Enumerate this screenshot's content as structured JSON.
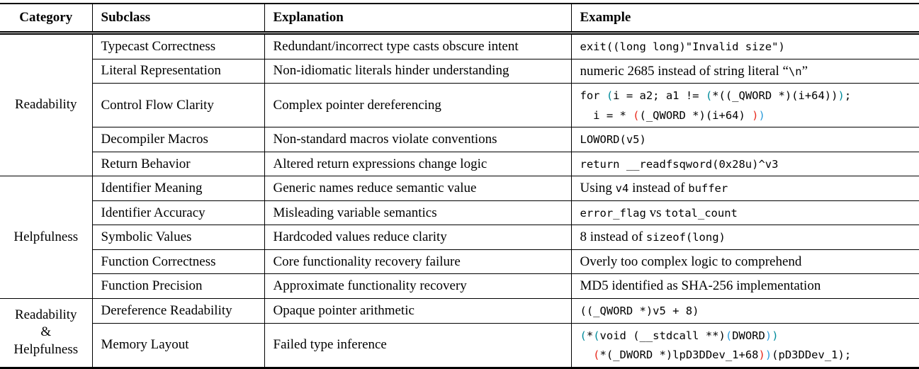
{
  "colors": {
    "teal": "#008B9B",
    "red": "#E8291C",
    "blue": "#2D9CDB"
  },
  "table": {
    "headers": [
      "Category",
      "Subclass",
      "Explanation",
      "Example"
    ],
    "groups": [
      {
        "category": [
          "Readability"
        ],
        "rows": [
          {
            "subclass": "Typecast Correctness",
            "explanation": "Redundant/incorrect type casts obscure intent",
            "example": [
              [
                {
                  "t": "exit((long long)\"Invalid size\")",
                  "m": true
                }
              ]
            ]
          },
          {
            "subclass": "Literal Representation",
            "explanation": "Non-idiomatic literals hinder understanding",
            "example": [
              [
                {
                  "t": "numeric 2685 instead of string literal “"
                },
                {
                  "t": "\\n",
                  "m": true
                },
                {
                  "t": "”"
                }
              ]
            ]
          },
          {
            "subclass": "Control Flow Clarity",
            "explanation": "Complex pointer dereferencing",
            "example": [
              [
                {
                  "t": "for ",
                  "m": true
                },
                {
                  "t": "(",
                  "m": true,
                  "c": "teal"
                },
                {
                  "t": "i = a2; a1 != ",
                  "m": true
                },
                {
                  "t": "(",
                  "m": true,
                  "c": "teal"
                },
                {
                  "t": "*((_QWORD *)(i+64))",
                  "m": true
                },
                {
                  "t": ")",
                  "m": true,
                  "c": "teal"
                },
                {
                  "t": ";",
                  "m": true
                }
              ],
              [
                {
                  "t": "  i = * ",
                  "m": true
                },
                {
                  "t": "(",
                  "m": true,
                  "c": "red"
                },
                {
                  "t": "(_QWORD *)(i+64) ",
                  "m": true
                },
                {
                  "t": ")",
                  "m": true,
                  "c": "red"
                },
                {
                  "t": ")",
                  "m": true,
                  "c": "blue"
                }
              ]
            ]
          },
          {
            "subclass": "Decompiler Macros",
            "explanation": "Non-standard macros violate conventions",
            "example": [
              [
                {
                  "t": "LOWORD(v5)",
                  "m": true
                }
              ]
            ]
          },
          {
            "subclass": "Return Behavior",
            "explanation": "Altered return expressions change logic",
            "example": [
              [
                {
                  "t": "return __readfsqword(0x28u)^v3",
                  "m": true
                }
              ]
            ]
          }
        ]
      },
      {
        "category": [
          "Helpfulness"
        ],
        "rows": [
          {
            "subclass": "Identifier Meaning",
            "explanation": "Generic names reduce semantic value",
            "example": [
              [
                {
                  "t": "Using "
                },
                {
                  "t": "v4",
                  "m": true
                },
                {
                  "t": " instead of "
                },
                {
                  "t": "buffer",
                  "m": true
                }
              ]
            ]
          },
          {
            "subclass": "Identifier Accuracy",
            "explanation": "Misleading variable semantics",
            "example": [
              [
                {
                  "t": "error_flag",
                  "m": true
                },
                {
                  "t": " vs "
                },
                {
                  "t": "total_count",
                  "m": true
                }
              ]
            ]
          },
          {
            "subclass": "Symbolic Values",
            "explanation": "Hardcoded values reduce clarity",
            "example": [
              [
                {
                  "t": "8 instead of "
                },
                {
                  "t": "sizeof(long)",
                  "m": true
                }
              ]
            ]
          },
          {
            "subclass": "Function Correctness",
            "explanation": "Core functionality recovery failure",
            "example": [
              [
                {
                  "t": "Overly too complex logic to comprehend"
                }
              ]
            ]
          },
          {
            "subclass": "Function Precision",
            "explanation": "Approximate functionality recovery",
            "example": [
              [
                {
                  "t": "MD5 identified as SHA-256 implementation"
                }
              ]
            ]
          }
        ]
      },
      {
        "category": [
          "Readability",
          "&",
          "Helpfulness"
        ],
        "rows": [
          {
            "subclass": "Dereference Readability",
            "explanation": "Opaque pointer arithmetic",
            "example": [
              [
                {
                  "t": "((_QWORD *)v5 + 8)",
                  "m": true
                }
              ]
            ]
          },
          {
            "subclass": "Memory Layout",
            "explanation": "Failed type inference",
            "example": [
              [
                {
                  "t": "(",
                  "m": true,
                  "c": "teal"
                },
                {
                  "t": "*",
                  "m": true
                },
                {
                  "t": "(",
                  "m": true,
                  "c": "teal"
                },
                {
                  "t": "void (__stdcall **)",
                  "m": true
                },
                {
                  "t": "(",
                  "m": true,
                  "c": "blue"
                },
                {
                  "t": "DWORD",
                  "m": true
                },
                {
                  "t": ")",
                  "m": true,
                  "c": "blue"
                },
                {
                  "t": ")",
                  "m": true,
                  "c": "teal"
                }
              ],
              [
                {
                  "t": "  ",
                  "m": true
                },
                {
                  "t": "(",
                  "m": true,
                  "c": "red"
                },
                {
                  "t": "*(_DWORD *)lpD3DDev_1+68",
                  "m": true
                },
                {
                  "t": ")",
                  "m": true,
                  "c": "red"
                },
                {
                  "t": ")",
                  "m": true,
                  "c": "blue"
                },
                {
                  "t": "(pD3DDev_1);",
                  "m": true
                }
              ]
            ]
          }
        ]
      }
    ]
  }
}
